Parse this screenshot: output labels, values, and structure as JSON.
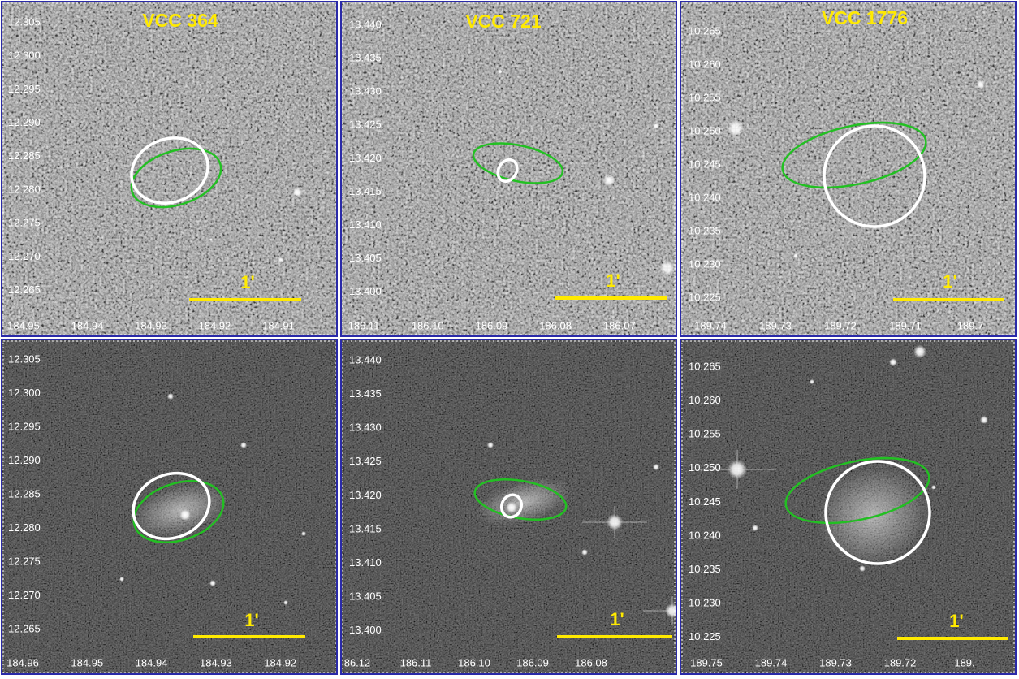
{
  "panels": [
    {
      "title": "VCC 364",
      "y_labels": [
        "12.305",
        "12.300",
        "12.295",
        "12.290",
        "12.285",
        "12.280",
        "12.275",
        "12.270",
        "12.265"
      ],
      "x_labels": [
        "184.95",
        "184.94",
        "184.93",
        "184.92",
        "184.91"
      ],
      "scale_label": "1'"
    },
    {
      "title": "VCC 721",
      "y_labels": [
        "13.440",
        "13.435",
        "13.430",
        "13.425",
        "13.420",
        "13.415",
        "13.410",
        "13.405",
        "13.400"
      ],
      "x_labels": [
        "186.11",
        "186.10",
        "186.09",
        "186.08",
        "186.07"
      ],
      "scale_label": "1'"
    },
    {
      "title": "VCC 1776",
      "y_labels": [
        "10.265",
        "10.260",
        "10.255",
        "10.250",
        "10.245",
        "10.240",
        "10.235",
        "10.230",
        "10.225"
      ],
      "x_labels": [
        "189.74",
        "189.73",
        "189.72",
        "189.71",
        "189.7"
      ],
      "scale_label": "1'"
    },
    {
      "y_labels": [
        "12.305",
        "12.300",
        "12.295",
        "12.290",
        "12.285",
        "12.280",
        "12.275",
        "12.270",
        "12.265"
      ],
      "x_labels": [
        "184.96",
        "184.95",
        "184.94",
        "184.93",
        "184.92"
      ],
      "scale_label": "1'"
    },
    {
      "y_labels": [
        "13.440",
        "13.435",
        "13.430",
        "13.425",
        "13.420",
        "13.415",
        "13.410",
        "13.405",
        "13.400"
      ],
      "x_labels": [
        "86.12",
        "186.11",
        "186.10",
        "186.09",
        "186.08"
      ],
      "scale_label": "1'"
    },
    {
      "y_labels": [
        "10.265",
        "10.260",
        "10.255",
        "10.250",
        "10.245",
        "10.240",
        "10.235",
        "10.230",
        "10.225"
      ],
      "x_labels": [
        "189.75",
        "189.74",
        "189.73",
        "189.72",
        "189."
      ],
      "scale_label": "1'"
    }
  ]
}
